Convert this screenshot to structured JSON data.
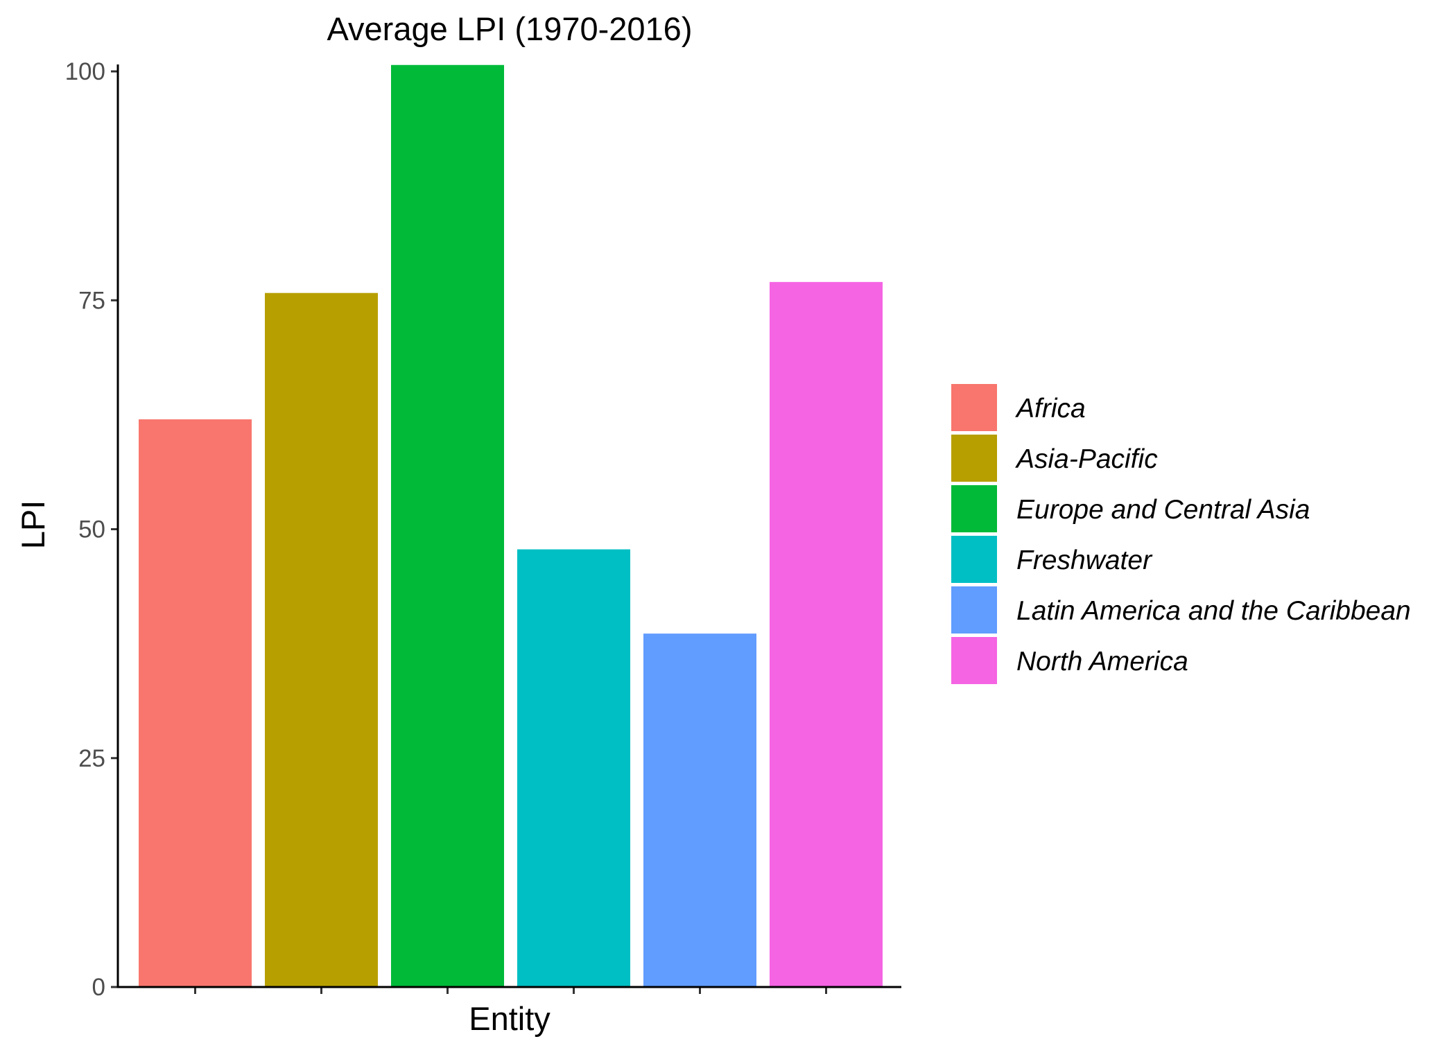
{
  "chart_data": {
    "type": "bar",
    "title": "Average LPI (1970-2016)",
    "xlabel": "Entity",
    "ylabel": "LPI",
    "ylim": [
      0,
      100
    ],
    "yticks": [
      "0",
      "25",
      "50",
      "75",
      "100"
    ],
    "categories": [
      "Africa",
      "Asia-Pacific",
      "Europe and Central Asia",
      "Freshwater",
      "Latin America and the Caribbean",
      "North America"
    ],
    "values": [
      62,
      75.8,
      100.7,
      47.8,
      38.6,
      77
    ],
    "colors": [
      "#F8766D",
      "#B79F00",
      "#00BA38",
      "#00BFC4",
      "#619CFF",
      "#F564E3"
    ],
    "x_tick_labels_shown": false,
    "grid": false,
    "legend": {
      "position": "right",
      "entries": [
        "Africa",
        "Asia-Pacific",
        "Europe and Central Asia",
        "Freshwater",
        "Latin America and the Caribbean",
        "North America"
      ]
    }
  }
}
